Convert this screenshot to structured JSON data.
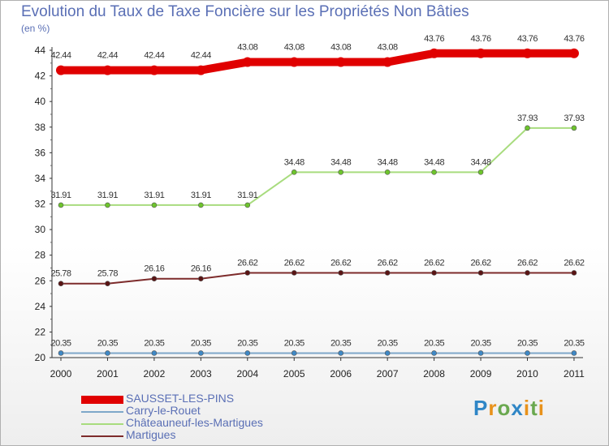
{
  "chart_data": {
    "type": "line",
    "title": "Evolution du Taux de Taxe Foncière sur les Propriétés Non Bâties",
    "ylabel": "(en %)",
    "xlabel": "",
    "ylim": [
      20,
      44
    ],
    "yticks": [
      "20",
      "22",
      "24",
      "26",
      "28",
      "30",
      "32",
      "34",
      "36",
      "38",
      "40",
      "42",
      "44"
    ],
    "categories": [
      "2000",
      "2001",
      "2002",
      "2003",
      "2004",
      "2005",
      "2006",
      "2007",
      "2008",
      "2009",
      "2010",
      "2011"
    ],
    "series": [
      {
        "name": "SAUSSET-LES-PINS",
        "color": "#e00000",
        "marker": "#e00000",
        "values": [
          42.44,
          42.44,
          42.44,
          42.44,
          43.08,
          43.08,
          43.08,
          43.08,
          43.76,
          43.76,
          43.76,
          43.76
        ],
        "labels": [
          "42.44",
          "42.44",
          "42.44",
          "42.44",
          "43.08",
          "43.08",
          "43.08",
          "43.08",
          "43.76",
          "43.76",
          "43.76",
          "43.76"
        ]
      },
      {
        "name": "Carry-le-Rouet",
        "color": "#7ea7c9",
        "marker": "#3f88c5",
        "values": [
          20.35,
          20.35,
          20.35,
          20.35,
          20.35,
          20.35,
          20.35,
          20.35,
          20.35,
          20.35,
          20.35,
          20.35
        ],
        "labels": [
          "20.35",
          "20.35",
          "20.35",
          "20.35",
          "20.35",
          "20.35",
          "20.35",
          "20.35",
          "20.35",
          "20.35",
          "20.35",
          "20.35"
        ]
      },
      {
        "name": "Châteauneuf-les-Martigues",
        "color": "#a8dc7e",
        "marker": "#6dc42c",
        "values": [
          31.91,
          31.91,
          31.91,
          31.91,
          31.91,
          34.48,
          34.48,
          34.48,
          34.48,
          34.48,
          37.93,
          37.93
        ],
        "labels": [
          "31.91",
          "31.91",
          "31.91",
          "31.91",
          "31.91",
          "34.48",
          "34.48",
          "34.48",
          "34.48",
          "34.48",
          "37.93",
          "37.93"
        ]
      },
      {
        "name": "Martigues",
        "color": "#7d2b2b",
        "marker": "#5a1414",
        "values": [
          25.78,
          25.78,
          26.16,
          26.16,
          26.62,
          26.62,
          26.62,
          26.62,
          26.62,
          26.62,
          26.62,
          26.62
        ],
        "labels": [
          "25.78",
          "25.78",
          "26.16",
          "26.16",
          "26.62",
          "26.62",
          "26.62",
          "26.62",
          "26.62",
          "26.62",
          "26.62",
          "26.62"
        ]
      }
    ],
    "legend_position": "bottom-left"
  },
  "branding": {
    "logo_text": "Proxiti"
  }
}
